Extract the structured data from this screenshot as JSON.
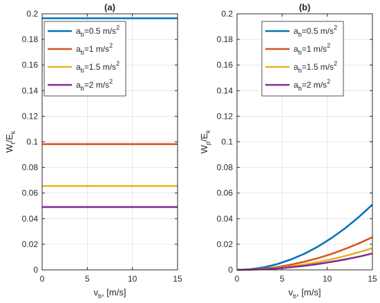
{
  "colors": {
    "series": [
      "#0072BD",
      "#D95319",
      "#EDB120",
      "#7E2F8E"
    ],
    "axis": "#262626",
    "grid": "#dfdfdf"
  },
  "chart_data": [
    {
      "type": "line",
      "title": "(a)",
      "xlabel": {
        "main": "v",
        "sub": "b",
        "rest": ", [m/s]"
      },
      "ylabel": {
        "main": "W",
        "sub": "t",
        "mid": "/E",
        "sub2": "k"
      },
      "xlim": [
        0,
        15
      ],
      "ylim": [
        0,
        0.2
      ],
      "xticks": [
        0,
        5,
        10,
        15
      ],
      "yticks": [
        0,
        0.02,
        0.04,
        0.06,
        0.08,
        0.1,
        0.12,
        0.14,
        0.16,
        0.18,
        0.2
      ],
      "xtick_labels": [
        "0",
        "5",
        "10",
        "15"
      ],
      "ytick_labels": [
        "0",
        "0.02",
        "0.04",
        "0.06",
        "0.08",
        "0.1",
        "0.12",
        "0.14",
        "0.16",
        "0.18",
        "0.2"
      ],
      "grid": true,
      "legend_position": "top-left",
      "series": [
        {
          "legend": {
            "pre": "a",
            "sub": "b",
            "mid": "=0.5 m/s",
            "sup": "2"
          },
          "x": [
            0,
            15
          ],
          "y": [
            0.1965,
            0.1965
          ]
        },
        {
          "legend": {
            "pre": "a",
            "sub": "b",
            "mid": "=1 m/s",
            "sup": "2"
          },
          "x": [
            0,
            15
          ],
          "y": [
            0.0982,
            0.0982
          ]
        },
        {
          "legend": {
            "pre": "a",
            "sub": "b",
            "mid": "=1.5 m/s",
            "sup": "2"
          },
          "x": [
            0,
            15
          ],
          "y": [
            0.0655,
            0.0655
          ]
        },
        {
          "legend": {
            "pre": "a",
            "sub": "b",
            "mid": "=2 m/s",
            "sup": "2"
          },
          "x": [
            0,
            15
          ],
          "y": [
            0.0491,
            0.0491
          ]
        }
      ]
    },
    {
      "type": "line",
      "title": "(b)",
      "xlabel": {
        "main": "v",
        "sub": "b",
        "rest": ", [m/s]"
      },
      "ylabel": {
        "main": "W",
        "sub": "p",
        "mid": "/E",
        "sub2": "k"
      },
      "xlim": [
        0,
        15
      ],
      "ylim": [
        0,
        0.2
      ],
      "xticks": [
        0,
        5,
        10,
        15
      ],
      "yticks": [
        0,
        0.02,
        0.04,
        0.06,
        0.08,
        0.1,
        0.12,
        0.14,
        0.16,
        0.18,
        0.2
      ],
      "xtick_labels": [
        "0",
        "5",
        "10",
        "15"
      ],
      "ytick_labels": [
        "0",
        "0.02",
        "0.04",
        "0.06",
        "0.08",
        "0.1",
        "0.12",
        "0.14",
        "0.16",
        "0.18",
        "0.2"
      ],
      "grid": true,
      "legend_position": "top-right",
      "series": [
        {
          "legend": {
            "pre": "a",
            "sub": "b",
            "mid": "=0.5 m/s",
            "sup": "2"
          },
          "x": [
            0,
            1.5,
            3,
            4.5,
            6,
            7.5,
            9,
            10.5,
            12,
            13.5,
            15
          ],
          "y": [
            0,
            0.0005,
            0.002,
            0.0046,
            0.0082,
            0.0127,
            0.0183,
            0.025,
            0.0326,
            0.0413,
            0.051
          ]
        },
        {
          "legend": {
            "pre": "a",
            "sub": "b",
            "mid": "=1 m/s",
            "sup": "2"
          },
          "x": [
            0,
            1.5,
            3,
            4.5,
            6,
            7.5,
            9,
            10.5,
            12,
            13.5,
            15
          ],
          "y": [
            0,
            0.00026,
            0.001,
            0.0023,
            0.0041,
            0.0064,
            0.0092,
            0.0125,
            0.0164,
            0.0207,
            0.0255
          ]
        },
        {
          "legend": {
            "pre": "a",
            "sub": "b",
            "mid": "=1.5 m/s",
            "sup": "2"
          },
          "x": [
            0,
            1.5,
            3,
            4.5,
            6,
            7.5,
            9,
            10.5,
            12,
            13.5,
            15
          ],
          "y": [
            0,
            0.00017,
            0.00068,
            0.0015,
            0.0027,
            0.0043,
            0.0061,
            0.0083,
            0.0109,
            0.0138,
            0.017
          ]
        },
        {
          "legend": {
            "pre": "a",
            "sub": "b",
            "mid": "=2 m/s",
            "sup": "2"
          },
          "x": [
            0,
            1.5,
            3,
            4.5,
            6,
            7.5,
            9,
            10.5,
            12,
            13.5,
            15
          ],
          "y": [
            0,
            0.00013,
            0.0005,
            0.0011,
            0.0021,
            0.0032,
            0.0046,
            0.0063,
            0.0082,
            0.0103,
            0.0128
          ]
        }
      ]
    }
  ]
}
